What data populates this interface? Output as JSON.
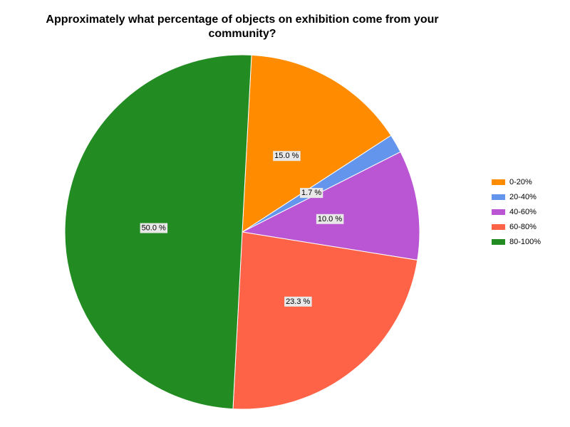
{
  "chart_data": {
    "type": "pie",
    "title": "Approximately what percentage of objects on exhibition come from your community?",
    "categories": [
      "0-20%",
      "20-40%",
      "40-60%",
      "60-80%",
      "80-100%"
    ],
    "values": [
      15.0,
      1.7,
      10.0,
      23.3,
      50.0
    ],
    "data_labels": [
      "15.0 %",
      "1.7 %",
      "10.0 %",
      "23.3 %",
      "50.0 %"
    ],
    "colors": [
      "#ff8c00",
      "#6495ed",
      "#ba55d3",
      "#ff6347",
      "#228b22"
    ],
    "legend_placement": "right"
  }
}
